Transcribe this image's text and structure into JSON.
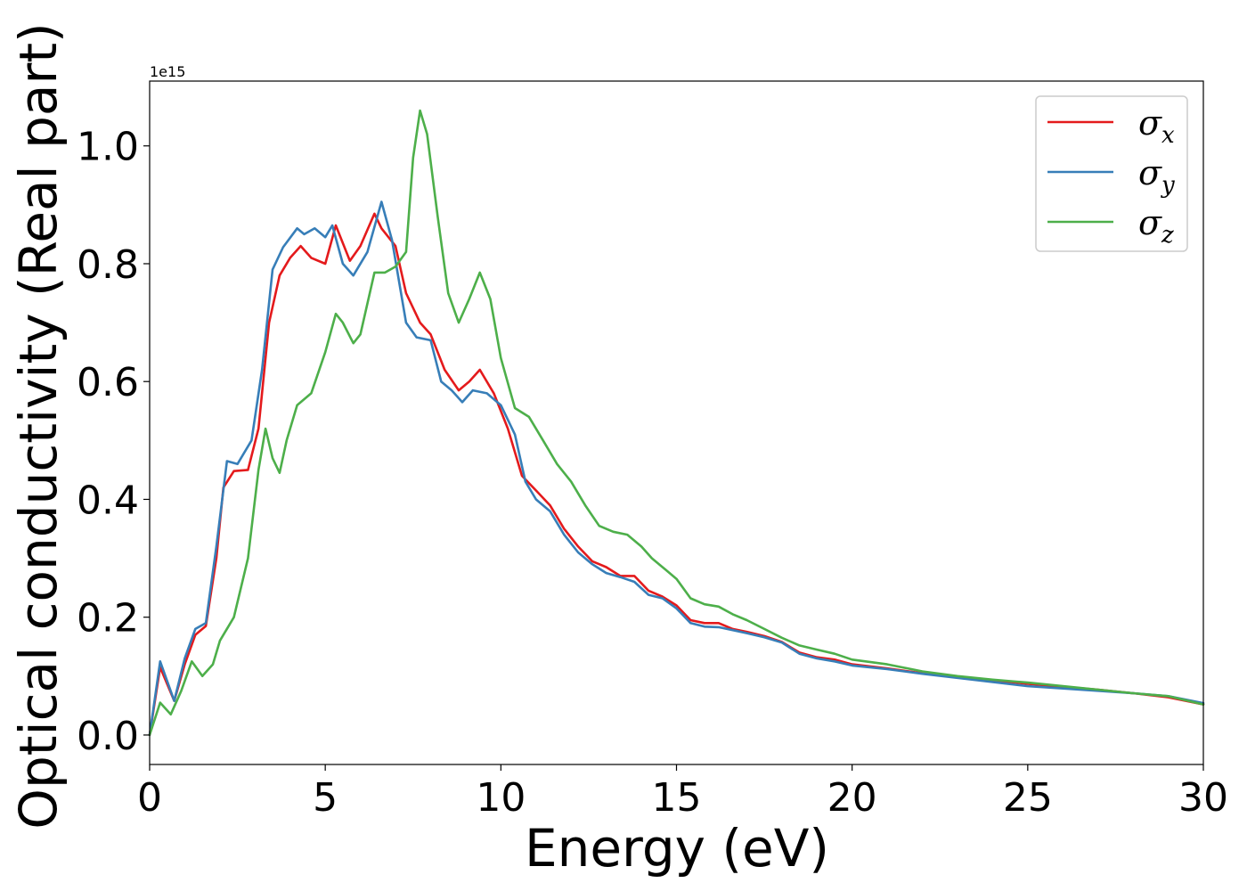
{
  "chart_data": {
    "type": "line",
    "title": "",
    "xlabel": "Energy (eV)",
    "ylabel": "Optical conductivity (Real part)",
    "y_offset_label": "1e15",
    "xlim": [
      0,
      30
    ],
    "ylim": [
      -0.05,
      1.11
    ],
    "x_ticks": [
      0,
      5,
      10,
      15,
      20,
      25,
      30
    ],
    "x_tick_labels": [
      "0",
      "5",
      "10",
      "15",
      "20",
      "25",
      "30"
    ],
    "y_ticks": [
      0.0,
      0.2,
      0.4,
      0.6,
      0.8,
      1.0
    ],
    "y_tick_labels": [
      "0.0",
      "0.2",
      "0.4",
      "0.6",
      "0.8",
      "1.0"
    ],
    "grid": false,
    "legend_position": "top-right",
    "series": [
      {
        "name": "σx",
        "symbol": "σ",
        "subscript": "x",
        "color": "#e41a1c",
        "points": [
          [
            0,
            0.0
          ],
          [
            0.3,
            0.115
          ],
          [
            0.7,
            0.058
          ],
          [
            1.0,
            0.12
          ],
          [
            1.3,
            0.17
          ],
          [
            1.6,
            0.185
          ],
          [
            1.9,
            0.3
          ],
          [
            2.1,
            0.42
          ],
          [
            2.4,
            0.448
          ],
          [
            2.8,
            0.45
          ],
          [
            3.1,
            0.52
          ],
          [
            3.4,
            0.7
          ],
          [
            3.7,
            0.78
          ],
          [
            4.0,
            0.81
          ],
          [
            4.3,
            0.83
          ],
          [
            4.6,
            0.81
          ],
          [
            5.0,
            0.8
          ],
          [
            5.3,
            0.865
          ],
          [
            5.7,
            0.805
          ],
          [
            6.0,
            0.83
          ],
          [
            6.4,
            0.885
          ],
          [
            6.6,
            0.86
          ],
          [
            7.0,
            0.83
          ],
          [
            7.3,
            0.75
          ],
          [
            7.7,
            0.7
          ],
          [
            8.0,
            0.68
          ],
          [
            8.4,
            0.62
          ],
          [
            8.8,
            0.585
          ],
          [
            9.1,
            0.6
          ],
          [
            9.4,
            0.62
          ],
          [
            9.8,
            0.58
          ],
          [
            10.2,
            0.52
          ],
          [
            10.6,
            0.44
          ],
          [
            11.0,
            0.415
          ],
          [
            11.4,
            0.39
          ],
          [
            11.8,
            0.35
          ],
          [
            12.2,
            0.32
          ],
          [
            12.6,
            0.295
          ],
          [
            13.0,
            0.285
          ],
          [
            13.4,
            0.27
          ],
          [
            13.8,
            0.27
          ],
          [
            14.2,
            0.245
          ],
          [
            14.6,
            0.235
          ],
          [
            15.0,
            0.22
          ],
          [
            15.4,
            0.195
          ],
          [
            15.8,
            0.19
          ],
          [
            16.2,
            0.19
          ],
          [
            16.6,
            0.18
          ],
          [
            17.0,
            0.175
          ],
          [
            17.5,
            0.168
          ],
          [
            18.0,
            0.158
          ],
          [
            18.5,
            0.14
          ],
          [
            19.0,
            0.132
          ],
          [
            19.5,
            0.128
          ],
          [
            20.0,
            0.12
          ],
          [
            21.0,
            0.113
          ],
          [
            22.0,
            0.105
          ],
          [
            23.0,
            0.098
          ],
          [
            24.0,
            0.093
          ],
          [
            25.0,
            0.087
          ],
          [
            26.0,
            0.082
          ],
          [
            27.0,
            0.077
          ],
          [
            28.0,
            0.071
          ],
          [
            29.0,
            0.064
          ],
          [
            30.0,
            0.052
          ]
        ]
      },
      {
        "name": "σy",
        "symbol": "σ",
        "subscript": "y",
        "color": "#377eb8",
        "points": [
          [
            0,
            0.0
          ],
          [
            0.3,
            0.125
          ],
          [
            0.7,
            0.058
          ],
          [
            1.0,
            0.13
          ],
          [
            1.3,
            0.18
          ],
          [
            1.6,
            0.19
          ],
          [
            1.9,
            0.32
          ],
          [
            2.2,
            0.465
          ],
          [
            2.5,
            0.46
          ],
          [
            2.9,
            0.5
          ],
          [
            3.2,
            0.62
          ],
          [
            3.5,
            0.79
          ],
          [
            3.8,
            0.828
          ],
          [
            4.2,
            0.86
          ],
          [
            4.4,
            0.85
          ],
          [
            4.7,
            0.86
          ],
          [
            5.0,
            0.845
          ],
          [
            5.2,
            0.865
          ],
          [
            5.5,
            0.8
          ],
          [
            5.8,
            0.78
          ],
          [
            6.2,
            0.82
          ],
          [
            6.6,
            0.905
          ],
          [
            6.9,
            0.84
          ],
          [
            7.3,
            0.7
          ],
          [
            7.6,
            0.675
          ],
          [
            8.0,
            0.67
          ],
          [
            8.3,
            0.6
          ],
          [
            8.6,
            0.585
          ],
          [
            8.9,
            0.565
          ],
          [
            9.2,
            0.585
          ],
          [
            9.6,
            0.58
          ],
          [
            10.0,
            0.56
          ],
          [
            10.4,
            0.51
          ],
          [
            10.7,
            0.43
          ],
          [
            11.0,
            0.4
          ],
          [
            11.4,
            0.38
          ],
          [
            11.8,
            0.34
          ],
          [
            12.2,
            0.31
          ],
          [
            12.6,
            0.29
          ],
          [
            13.0,
            0.275
          ],
          [
            13.4,
            0.268
          ],
          [
            13.8,
            0.26
          ],
          [
            14.2,
            0.238
          ],
          [
            14.6,
            0.232
          ],
          [
            15.0,
            0.215
          ],
          [
            15.4,
            0.19
          ],
          [
            15.8,
            0.184
          ],
          [
            16.2,
            0.183
          ],
          [
            16.6,
            0.178
          ],
          [
            17.0,
            0.173
          ],
          [
            17.5,
            0.166
          ],
          [
            18.0,
            0.157
          ],
          [
            18.5,
            0.138
          ],
          [
            19.0,
            0.13
          ],
          [
            19.5,
            0.125
          ],
          [
            20.0,
            0.118
          ],
          [
            21.0,
            0.112
          ],
          [
            22.0,
            0.104
          ],
          [
            23.0,
            0.097
          ],
          [
            24.0,
            0.09
          ],
          [
            25.0,
            0.083
          ],
          [
            26.0,
            0.079
          ],
          [
            27.0,
            0.075
          ],
          [
            28.0,
            0.071
          ],
          [
            29.0,
            0.066
          ],
          [
            30.0,
            0.054
          ]
        ]
      },
      {
        "name": "σz",
        "symbol": "σ",
        "subscript": "z",
        "color": "#4daf4a",
        "points": [
          [
            0,
            0.0
          ],
          [
            0.3,
            0.055
          ],
          [
            0.6,
            0.035
          ],
          [
            0.9,
            0.075
          ],
          [
            1.2,
            0.125
          ],
          [
            1.5,
            0.1
          ],
          [
            1.8,
            0.12
          ],
          [
            2.0,
            0.16
          ],
          [
            2.4,
            0.2
          ],
          [
            2.8,
            0.3
          ],
          [
            3.1,
            0.45
          ],
          [
            3.3,
            0.52
          ],
          [
            3.5,
            0.47
          ],
          [
            3.7,
            0.445
          ],
          [
            3.9,
            0.5
          ],
          [
            4.2,
            0.56
          ],
          [
            4.6,
            0.58
          ],
          [
            5.0,
            0.65
          ],
          [
            5.3,
            0.715
          ],
          [
            5.5,
            0.7
          ],
          [
            5.8,
            0.665
          ],
          [
            6.0,
            0.68
          ],
          [
            6.4,
            0.785
          ],
          [
            6.7,
            0.785
          ],
          [
            7.0,
            0.795
          ],
          [
            7.3,
            0.82
          ],
          [
            7.5,
            0.98
          ],
          [
            7.7,
            1.06
          ],
          [
            7.9,
            1.02
          ],
          [
            8.2,
            0.88
          ],
          [
            8.5,
            0.75
          ],
          [
            8.8,
            0.7
          ],
          [
            9.1,
            0.74
          ],
          [
            9.4,
            0.785
          ],
          [
            9.7,
            0.74
          ],
          [
            10.0,
            0.64
          ],
          [
            10.4,
            0.555
          ],
          [
            10.8,
            0.54
          ],
          [
            11.2,
            0.5
          ],
          [
            11.6,
            0.46
          ],
          [
            12.0,
            0.43
          ],
          [
            12.4,
            0.39
          ],
          [
            12.8,
            0.355
          ],
          [
            13.2,
            0.345
          ],
          [
            13.6,
            0.34
          ],
          [
            14.0,
            0.32
          ],
          [
            14.3,
            0.3
          ],
          [
            14.7,
            0.28
          ],
          [
            15.0,
            0.265
          ],
          [
            15.4,
            0.232
          ],
          [
            15.8,
            0.222
          ],
          [
            16.2,
            0.218
          ],
          [
            16.6,
            0.205
          ],
          [
            17.0,
            0.195
          ],
          [
            17.5,
            0.18
          ],
          [
            18.0,
            0.165
          ],
          [
            18.5,
            0.152
          ],
          [
            19.0,
            0.145
          ],
          [
            19.5,
            0.138
          ],
          [
            20.0,
            0.128
          ],
          [
            21.0,
            0.12
          ],
          [
            22.0,
            0.108
          ],
          [
            23.0,
            0.1
          ],
          [
            24.0,
            0.094
          ],
          [
            25.0,
            0.089
          ],
          [
            26.0,
            0.083
          ],
          [
            27.0,
            0.077
          ],
          [
            28.0,
            0.071
          ],
          [
            29.0,
            0.066
          ],
          [
            30.0,
            0.052
          ]
        ]
      }
    ]
  }
}
